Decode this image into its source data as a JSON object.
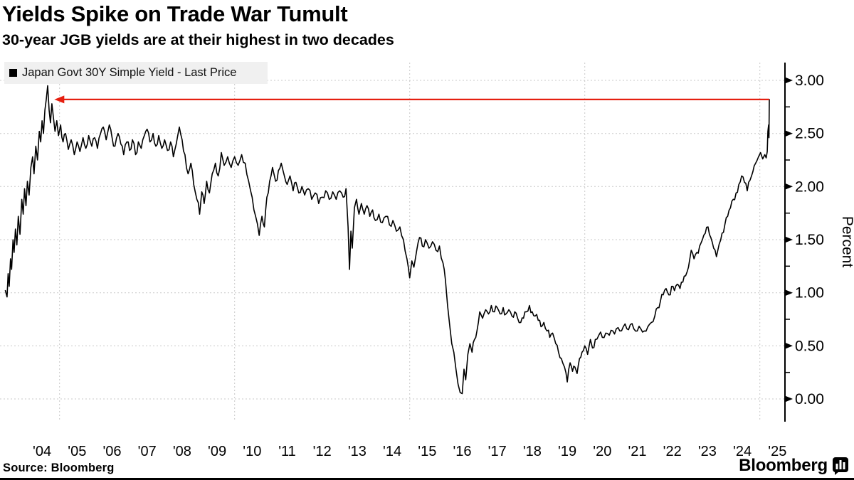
{
  "footer": {
    "source": "Source:  Bloomberg",
    "brand": "Bloomberg"
  },
  "chart_data": {
    "type": "line",
    "title": "Yields Spike on Trade War Tumult",
    "subtitle": "30-year JGB yields are at their highest in two decades",
    "legend_label": "Japan Govt 30Y Simple Yield - Last Price",
    "legend_position": "top-left",
    "ylabel": "Percent",
    "xlabel": "",
    "ylim": [
      0,
      3
    ],
    "xlim": [
      2003.4,
      2025.72
    ],
    "grid": "dashed",
    "grid_color": "#c9c9c9",
    "axis_color": "#000000",
    "y_ticks": [
      0,
      0.5,
      1,
      1.5,
      2,
      2.5,
      3
    ],
    "y_tick_labels": [
      "0.00",
      "0.50",
      "1.00",
      "1.50",
      "2.00",
      "2.50",
      "3.00"
    ],
    "y_minor_ticks": [
      0.25,
      0.75,
      1.25,
      1.75,
      2.25,
      2.75
    ],
    "x_tick_years": [
      2004,
      2005,
      2006,
      2007,
      2008,
      2009,
      2010,
      2011,
      2012,
      2013,
      2014,
      2015,
      2016,
      2017,
      2018,
      2019,
      2020,
      2021,
      2022,
      2023,
      2024,
      2025
    ],
    "x_tick_labels": [
      "'04",
      "'05",
      "'06",
      "'07",
      "'08",
      "'09",
      "'10",
      "'11",
      "'12",
      "'13",
      "'14",
      "'15",
      "'16",
      "'17",
      "'18",
      "'19",
      "'20",
      "'21",
      "'22",
      "'23",
      "'24",
      "'25"
    ],
    "grid_x_years": [
      2005,
      2010,
      2015,
      2020,
      2025
    ],
    "annotation": {
      "type": "arrow-left",
      "description": "red line from April 2025 spike back to 2004 peak",
      "value_pct": 2.82,
      "from_year": 2025.27,
      "to_year": 2004.85,
      "color": "#e51f10"
    },
    "series": [
      {
        "name": "Japan Govt 30Y Simple Yield - Last Price",
        "color": "#000000",
        "unit": "percent",
        "points": [
          [
            2003.45,
            1.02
          ],
          [
            2003.5,
            0.96
          ],
          [
            2003.53,
            1.18
          ],
          [
            2003.56,
            1.06
          ],
          [
            2003.6,
            1.32
          ],
          [
            2003.63,
            1.22
          ],
          [
            2003.67,
            1.5
          ],
          [
            2003.7,
            1.38
          ],
          [
            2003.74,
            1.6
          ],
          [
            2003.78,
            1.45
          ],
          [
            2003.82,
            1.72
          ],
          [
            2003.87,
            1.55
          ],
          [
            2003.92,
            1.88
          ],
          [
            2003.96,
            1.74
          ],
          [
            2004,
            1.98
          ],
          [
            2004.04,
            1.82
          ],
          [
            2004.08,
            2.05
          ],
          [
            2004.13,
            1.92
          ],
          [
            2004.18,
            2.18
          ],
          [
            2004.23,
            2.28
          ],
          [
            2004.27,
            2.12
          ],
          [
            2004.32,
            2.38
          ],
          [
            2004.37,
            2.25
          ],
          [
            2004.42,
            2.52
          ],
          [
            2004.46,
            2.42
          ],
          [
            2004.5,
            2.62
          ],
          [
            2004.54,
            2.5
          ],
          [
            2004.58,
            2.72
          ],
          [
            2004.62,
            2.82
          ],
          [
            2004.66,
            2.95
          ],
          [
            2004.7,
            2.72
          ],
          [
            2004.74,
            2.6
          ],
          [
            2004.78,
            2.78
          ],
          [
            2004.82,
            2.66
          ],
          [
            2004.87,
            2.52
          ],
          [
            2004.92,
            2.62
          ],
          [
            2004.97,
            2.48
          ],
          [
            2005.03,
            2.58
          ],
          [
            2005.1,
            2.42
          ],
          [
            2005.17,
            2.5
          ],
          [
            2005.25,
            2.35
          ],
          [
            2005.33,
            2.44
          ],
          [
            2005.42,
            2.3
          ],
          [
            2005.5,
            2.42
          ],
          [
            2005.58,
            2.33
          ],
          [
            2005.67,
            2.46
          ],
          [
            2005.75,
            2.36
          ],
          [
            2005.83,
            2.48
          ],
          [
            2005.92,
            2.38
          ],
          [
            2006,
            2.46
          ],
          [
            2006.08,
            2.36
          ],
          [
            2006.17,
            2.5
          ],
          [
            2006.25,
            2.56
          ],
          [
            2006.33,
            2.44
          ],
          [
            2006.42,
            2.58
          ],
          [
            2006.5,
            2.46
          ],
          [
            2006.58,
            2.38
          ],
          [
            2006.67,
            2.5
          ],
          [
            2006.75,
            2.4
          ],
          [
            2006.83,
            2.3
          ],
          [
            2006.92,
            2.42
          ],
          [
            2007,
            2.34
          ],
          [
            2007.08,
            2.44
          ],
          [
            2007.17,
            2.3
          ],
          [
            2007.25,
            2.42
          ],
          [
            2007.33,
            2.36
          ],
          [
            2007.42,
            2.48
          ],
          [
            2007.5,
            2.54
          ],
          [
            2007.58,
            2.42
          ],
          [
            2007.67,
            2.5
          ],
          [
            2007.75,
            2.38
          ],
          [
            2007.83,
            2.48
          ],
          [
            2007.92,
            2.36
          ],
          [
            2008,
            2.44
          ],
          [
            2008.08,
            2.34
          ],
          [
            2008.17,
            2.42
          ],
          [
            2008.25,
            2.28
          ],
          [
            2008.33,
            2.4
          ],
          [
            2008.42,
            2.56
          ],
          [
            2008.5,
            2.44
          ],
          [
            2008.58,
            2.3
          ],
          [
            2008.67,
            2.12
          ],
          [
            2008.75,
            2.22
          ],
          [
            2008.83,
            2.02
          ],
          [
            2008.92,
            1.88
          ],
          [
            2009,
            1.74
          ],
          [
            2009.06,
            1.95
          ],
          [
            2009.13,
            1.84
          ],
          [
            2009.2,
            2.05
          ],
          [
            2009.28,
            1.94
          ],
          [
            2009.36,
            2.12
          ],
          [
            2009.45,
            2.22
          ],
          [
            2009.53,
            2.1
          ],
          [
            2009.62,
            2.32
          ],
          [
            2009.7,
            2.2
          ],
          [
            2009.8,
            2.28
          ],
          [
            2009.9,
            2.18
          ],
          [
            2010,
            2.28
          ],
          [
            2010.1,
            2.2
          ],
          [
            2010.2,
            2.3
          ],
          [
            2010.3,
            2.22
          ],
          [
            2010.4,
            2.05
          ],
          [
            2010.5,
            1.9
          ],
          [
            2010.6,
            1.72
          ],
          [
            2010.7,
            1.54
          ],
          [
            2010.78,
            1.72
          ],
          [
            2010.85,
            1.62
          ],
          [
            2010.92,
            1.9
          ],
          [
            2011,
            2.05
          ],
          [
            2011.08,
            2.18
          ],
          [
            2011.17,
            2.05
          ],
          [
            2011.25,
            2.15
          ],
          [
            2011.33,
            2.22
          ],
          [
            2011.42,
            2.1
          ],
          [
            2011.5,
            2.02
          ],
          [
            2011.58,
            2.1
          ],
          [
            2011.67,
            1.96
          ],
          [
            2011.75,
            2.04
          ],
          [
            2011.83,
            1.94
          ],
          [
            2011.92,
            2
          ],
          [
            2012,
            1.92
          ],
          [
            2012.1,
            1.98
          ],
          [
            2012.2,
            1.88
          ],
          [
            2012.3,
            1.94
          ],
          [
            2012.4,
            1.84
          ],
          [
            2012.5,
            1.9
          ],
          [
            2012.6,
            1.96
          ],
          [
            2012.7,
            1.88
          ],
          [
            2012.8,
            1.95
          ],
          [
            2012.9,
            1.88
          ],
          [
            2013,
            1.96
          ],
          [
            2013.1,
            1.9
          ],
          [
            2013.18,
            1.98
          ],
          [
            2013.24,
            1.62
          ],
          [
            2013.28,
            1.22
          ],
          [
            2013.32,
            1.58
          ],
          [
            2013.36,
            1.42
          ],
          [
            2013.42,
            1.8
          ],
          [
            2013.48,
            1.88
          ],
          [
            2013.55,
            1.74
          ],
          [
            2013.62,
            1.84
          ],
          [
            2013.7,
            1.74
          ],
          [
            2013.78,
            1.82
          ],
          [
            2013.86,
            1.72
          ],
          [
            2013.94,
            1.78
          ],
          [
            2014.02,
            1.68
          ],
          [
            2014.12,
            1.74
          ],
          [
            2014.22,
            1.66
          ],
          [
            2014.32,
            1.72
          ],
          [
            2014.42,
            1.64
          ],
          [
            2014.52,
            1.68
          ],
          [
            2014.62,
            1.58
          ],
          [
            2014.72,
            1.62
          ],
          [
            2014.82,
            1.5
          ],
          [
            2014.92,
            1.32
          ],
          [
            2015,
            1.14
          ],
          [
            2015.06,
            1.3
          ],
          [
            2015.12,
            1.24
          ],
          [
            2015.2,
            1.4
          ],
          [
            2015.28,
            1.52
          ],
          [
            2015.36,
            1.44
          ],
          [
            2015.45,
            1.5
          ],
          [
            2015.55,
            1.42
          ],
          [
            2015.65,
            1.48
          ],
          [
            2015.75,
            1.4
          ],
          [
            2015.85,
            1.44
          ],
          [
            2015.95,
            1.28
          ],
          [
            2016.02,
            1.12
          ],
          [
            2016.08,
            0.88
          ],
          [
            2016.14,
            0.7
          ],
          [
            2016.2,
            0.52
          ],
          [
            2016.26,
            0.44
          ],
          [
            2016.32,
            0.28
          ],
          [
            2016.38,
            0.14
          ],
          [
            2016.44,
            0.06
          ],
          [
            2016.5,
            0.05
          ],
          [
            2016.55,
            0.28
          ],
          [
            2016.6,
            0.18
          ],
          [
            2016.66,
            0.42
          ],
          [
            2016.72,
            0.52
          ],
          [
            2016.78,
            0.44
          ],
          [
            2016.85,
            0.56
          ],
          [
            2016.92,
            0.64
          ],
          [
            2017,
            0.82
          ],
          [
            2017.08,
            0.76
          ],
          [
            2017.17,
            0.84
          ],
          [
            2017.25,
            0.8
          ],
          [
            2017.33,
            0.88
          ],
          [
            2017.42,
            0.82
          ],
          [
            2017.5,
            0.86
          ],
          [
            2017.58,
            0.8
          ],
          [
            2017.67,
            0.86
          ],
          [
            2017.75,
            0.8
          ],
          [
            2017.83,
            0.84
          ],
          [
            2017.92,
            0.78
          ],
          [
            2018,
            0.82
          ],
          [
            2018.08,
            0.76
          ],
          [
            2018.17,
            0.72
          ],
          [
            2018.25,
            0.76
          ],
          [
            2018.33,
            0.82
          ],
          [
            2018.42,
            0.88
          ],
          [
            2018.5,
            0.82
          ],
          [
            2018.58,
            0.78
          ],
          [
            2018.67,
            0.74
          ],
          [
            2018.75,
            0.68
          ],
          [
            2018.83,
            0.72
          ],
          [
            2018.92,
            0.64
          ],
          [
            2019,
            0.58
          ],
          [
            2019.08,
            0.62
          ],
          [
            2019.17,
            0.52
          ],
          [
            2019.25,
            0.44
          ],
          [
            2019.33,
            0.38
          ],
          [
            2019.42,
            0.3
          ],
          [
            2019.5,
            0.16
          ],
          [
            2019.58,
            0.34
          ],
          [
            2019.65,
            0.26
          ],
          [
            2019.72,
            0.3
          ],
          [
            2019.78,
            0.24
          ],
          [
            2019.85,
            0.38
          ],
          [
            2019.92,
            0.44
          ],
          [
            2020,
            0.5
          ],
          [
            2020.08,
            0.42
          ],
          [
            2020.16,
            0.56
          ],
          [
            2020.22,
            0.48
          ],
          [
            2020.3,
            0.56
          ],
          [
            2020.4,
            0.6
          ],
          [
            2020.5,
            0.58
          ],
          [
            2020.6,
            0.62
          ],
          [
            2020.7,
            0.6
          ],
          [
            2020.8,
            0.64
          ],
          [
            2020.9,
            0.66
          ],
          [
            2021,
            0.64
          ],
          [
            2021.1,
            0.68
          ],
          [
            2021.2,
            0.66
          ],
          [
            2021.3,
            0.7
          ],
          [
            2021.4,
            0.66
          ],
          [
            2021.5,
            0.64
          ],
          [
            2021.6,
            0.66
          ],
          [
            2021.7,
            0.64
          ],
          [
            2021.8,
            0.68
          ],
          [
            2021.9,
            0.72
          ],
          [
            2022,
            0.78
          ],
          [
            2022.08,
            0.86
          ],
          [
            2022.16,
            0.92
          ],
          [
            2022.24,
            0.98
          ],
          [
            2022.32,
            1.04
          ],
          [
            2022.4,
            0.98
          ],
          [
            2022.48,
            1.06
          ],
          [
            2022.56,
            1.02
          ],
          [
            2022.64,
            1.08
          ],
          [
            2022.72,
            1.04
          ],
          [
            2022.8,
            1.1
          ],
          [
            2022.88,
            1.16
          ],
          [
            2022.96,
            1.24
          ],
          [
            2023.04,
            1.4
          ],
          [
            2023.12,
            1.32
          ],
          [
            2023.2,
            1.38
          ],
          [
            2023.28,
            1.44
          ],
          [
            2023.36,
            1.5
          ],
          [
            2023.44,
            1.56
          ],
          [
            2023.52,
            1.62
          ],
          [
            2023.6,
            1.52
          ],
          [
            2023.68,
            1.42
          ],
          [
            2023.76,
            1.34
          ],
          [
            2023.84,
            1.46
          ],
          [
            2023.92,
            1.56
          ],
          [
            2024,
            1.64
          ],
          [
            2024.08,
            1.72
          ],
          [
            2024.16,
            1.8
          ],
          [
            2024.24,
            1.88
          ],
          [
            2024.32,
            1.94
          ],
          [
            2024.4,
            2.02
          ],
          [
            2024.48,
            2.1
          ],
          [
            2024.56,
            2.04
          ],
          [
            2024.64,
            1.96
          ],
          [
            2024.72,
            2.06
          ],
          [
            2024.8,
            2.14
          ],
          [
            2024.88,
            2.22
          ],
          [
            2024.96,
            2.28
          ],
          [
            2025.02,
            2.32
          ],
          [
            2025.08,
            2.26
          ],
          [
            2025.14,
            2.3
          ],
          [
            2025.18,
            2.27
          ],
          [
            2025.21,
            2.33
          ],
          [
            2025.23,
            2.52
          ],
          [
            2025.25,
            2.58
          ],
          [
            2025.26,
            2.46
          ],
          [
            2025.27,
            2.82
          ]
        ]
      }
    ]
  }
}
